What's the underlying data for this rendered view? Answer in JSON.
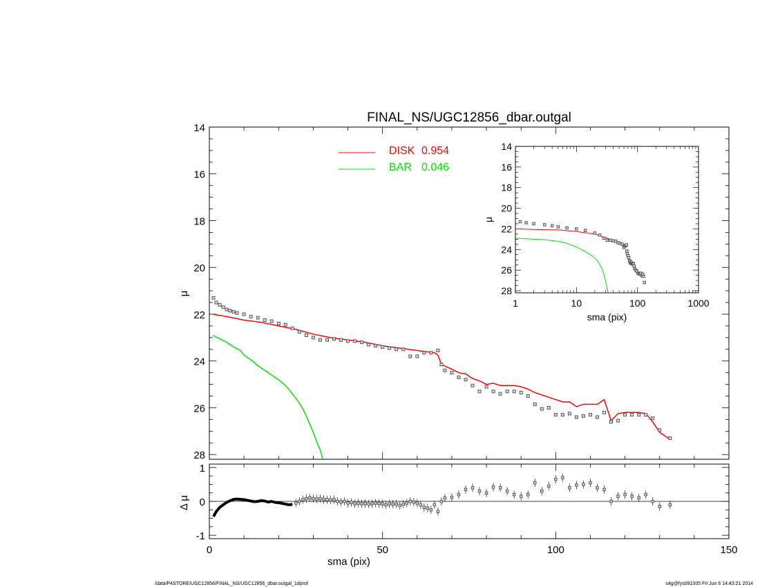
{
  "colors": {
    "disk": "#ff0000",
    "bar": "#00e000",
    "data_point": "#555555",
    "axis": "#000000",
    "background": "#ffffff"
  },
  "footer": {
    "left": "/data/P4STORE/UGC12856/FINAL_NS/UGC12856_dbar.outgal_1dprof",
    "right": "s4g@fys091005  Fri Jun  6 14:43:21 2014"
  },
  "chart_data": [
    {
      "id": "main",
      "type": "scatter",
      "title": "FINAL_NS/UGC12856_dbar.outgal",
      "xlabel": "",
      "ylabel": "μ",
      "xlim": [
        0,
        150
      ],
      "ylim": [
        28.2,
        14
      ],
      "y_inverted": true,
      "yticks": [
        "14",
        "16",
        "18",
        "20",
        "22",
        "24",
        "26",
        "28"
      ],
      "legend": {
        "placement": "top-center",
        "entries": [
          {
            "series": "disk",
            "label": "DISK",
            "value": "0.954"
          },
          {
            "series": "bar",
            "label": "BAR",
            "value": "0.046"
          }
        ]
      },
      "series": [
        {
          "key": "data",
          "kind": "points",
          "x": [
            1.2,
            2,
            3,
            4,
            5,
            6,
            7,
            8,
            10,
            12,
            14,
            16,
            18,
            20,
            22,
            24,
            26,
            28,
            30,
            32,
            34,
            36,
            38,
            40,
            42,
            44,
            46,
            48,
            50,
            52,
            54,
            56,
            58,
            60,
            62,
            64,
            66,
            67,
            68,
            70,
            72,
            74,
            76,
            78,
            80,
            82,
            84,
            86,
            88,
            90,
            92,
            94,
            96,
            98,
            100,
            102,
            104,
            106,
            108,
            110,
            112,
            114,
            116,
            118,
            120,
            122,
            124,
            126,
            128,
            130,
            133
          ],
          "y": [
            21.3,
            21.5,
            21.6,
            21.7,
            21.8,
            21.85,
            21.9,
            21.95,
            22.0,
            22.1,
            22.15,
            22.25,
            22.3,
            22.4,
            22.45,
            22.6,
            22.75,
            22.9,
            23.0,
            23.1,
            23.1,
            23.05,
            23.1,
            23.15,
            23.15,
            23.2,
            23.3,
            23.35,
            23.4,
            23.45,
            23.5,
            23.5,
            23.8,
            23.8,
            23.65,
            23.65,
            23.55,
            24.15,
            24.4,
            24.5,
            24.7,
            24.8,
            25.05,
            25.3,
            25.1,
            25.3,
            25.4,
            25.3,
            25.3,
            25.35,
            25.5,
            25.85,
            26.05,
            26.0,
            26.3,
            26.3,
            26.25,
            26.4,
            26.35,
            26.3,
            26.4,
            26.2,
            26.6,
            26.55,
            26.3,
            26.3,
            26.3,
            26.3,
            26.45,
            26.95,
            27.3
          ]
        },
        {
          "key": "disk",
          "name": "DISK",
          "kind": "line",
          "x": [
            1,
            5,
            10,
            15,
            20,
            25,
            30,
            35,
            40,
            45,
            50,
            55,
            60,
            65,
            66,
            67,
            70,
            72,
            74,
            76,
            78,
            80,
            82,
            84,
            86,
            88,
            90,
            92,
            94,
            96,
            98,
            100,
            102,
            104,
            106,
            108,
            110,
            112,
            114,
            116,
            118,
            120,
            122,
            124,
            126,
            128,
            130,
            133
          ],
          "y": [
            22.0,
            22.1,
            22.25,
            22.35,
            22.5,
            22.65,
            22.85,
            23.0,
            23.1,
            23.2,
            23.35,
            23.45,
            23.55,
            23.65,
            23.75,
            24.15,
            24.35,
            24.5,
            24.55,
            24.75,
            24.85,
            25.0,
            24.95,
            25.05,
            25.05,
            25.05,
            25.1,
            25.2,
            25.35,
            25.45,
            25.55,
            25.65,
            25.75,
            25.75,
            25.95,
            25.85,
            25.85,
            25.85,
            25.65,
            26.55,
            26.25,
            26.2,
            26.2,
            26.2,
            26.25,
            26.6,
            27.05,
            27.35
          ]
        },
        {
          "key": "bar",
          "name": "BAR",
          "kind": "line",
          "x": [
            1,
            3,
            5,
            7,
            9,
            10,
            12,
            14,
            16,
            18,
            20,
            22,
            24,
            26,
            27,
            28,
            29,
            30,
            31,
            32,
            32.8
          ],
          "y": [
            22.9,
            23.05,
            23.2,
            23.4,
            23.55,
            23.75,
            23.95,
            24.2,
            24.4,
            24.6,
            24.8,
            25.05,
            25.4,
            25.8,
            26.05,
            26.35,
            26.7,
            27.05,
            27.45,
            27.8,
            28.2
          ]
        }
      ]
    },
    {
      "id": "inset",
      "type": "line",
      "xlabel": "sma (pix)",
      "ylabel": "μ",
      "x_scale": "log",
      "xlim": [
        1,
        1000
      ],
      "ylim": [
        28.2,
        14
      ],
      "xticks": [
        "1",
        "10",
        "100",
        "1000"
      ],
      "yticks": [
        "14",
        "16",
        "18",
        "20",
        "22",
        "24",
        "26",
        "28"
      ],
      "series": [
        {
          "key": "data",
          "kind": "points",
          "x": [
            1.2,
            1.5,
            2,
            3,
            4,
            5,
            7,
            10,
            14,
            20,
            24,
            28,
            32,
            36,
            40,
            44,
            48,
            52,
            56,
            60,
            62,
            64,
            66,
            67,
            68,
            70,
            72,
            74,
            76,
            78,
            80,
            82,
            84,
            86,
            88,
            90,
            94,
            98,
            102,
            106,
            110,
            114,
            118,
            122,
            126,
            130
          ],
          "y": [
            21.3,
            21.4,
            21.5,
            21.6,
            21.7,
            21.8,
            21.9,
            22.0,
            22.15,
            22.4,
            22.6,
            22.9,
            23.1,
            23.1,
            23.15,
            23.2,
            23.35,
            23.4,
            23.5,
            23.8,
            23.65,
            23.6,
            23.55,
            24.15,
            24.4,
            24.6,
            24.8,
            25.1,
            25.3,
            25.2,
            25.35,
            25.4,
            25.35,
            25.4,
            25.6,
            25.85,
            26.0,
            26.1,
            26.3,
            26.35,
            26.4,
            26.3,
            26.55,
            26.4,
            26.6,
            27.2
          ]
        },
        {
          "key": "disk",
          "kind": "line",
          "x": [
            1,
            2,
            5,
            10,
            20,
            30,
            40,
            50,
            60,
            66
          ],
          "y": [
            22.0,
            22.05,
            22.1,
            22.25,
            22.5,
            22.85,
            23.1,
            23.35,
            23.55,
            23.75
          ]
        },
        {
          "key": "bar",
          "kind": "line",
          "x": [
            1,
            2,
            3,
            5,
            7,
            10,
            14,
            18,
            22,
            26,
            28,
            30,
            32,
            33
          ],
          "y": [
            22.9,
            23.0,
            23.05,
            23.2,
            23.4,
            23.75,
            24.2,
            24.6,
            25.05,
            25.8,
            26.35,
            27.05,
            27.8,
            28.2
          ]
        }
      ]
    },
    {
      "id": "residual",
      "type": "scatter",
      "xlabel": "sma (pix)",
      "ylabel": "Δ μ",
      "xlim": [
        0,
        150
      ],
      "ylim": [
        -1.1,
        1.1
      ],
      "xticks": [
        "0",
        "50",
        "100",
        "150"
      ],
      "yticks": [
        "1",
        "0",
        "-1"
      ],
      "series": [
        {
          "key": "resid_line",
          "kind": "line",
          "x": [
            1.2,
            2,
            3,
            4,
            5,
            6,
            7,
            8,
            9,
            10,
            11,
            12,
            13,
            14,
            15,
            16,
            17,
            18,
            19,
            20,
            21,
            22,
            23,
            24
          ],
          "y": [
            -0.45,
            -0.3,
            -0.18,
            -0.1,
            -0.03,
            0.02,
            0.06,
            0.07,
            0.06,
            0.05,
            0.03,
            0.01,
            -0.01,
            0.0,
            0.02,
            0.01,
            -0.02,
            0.0,
            -0.03,
            -0.04,
            -0.06,
            -0.08,
            -0.1,
            -0.09
          ]
        },
        {
          "key": "resid_points",
          "kind": "points",
          "x": [
            25,
            26,
            27,
            28,
            29,
            30,
            31,
            32,
            33,
            34,
            35,
            36,
            37,
            38,
            39,
            40,
            41,
            42,
            43,
            44,
            45,
            46,
            47,
            48,
            49,
            50,
            51,
            52,
            53,
            54,
            55,
            56,
            57,
            58,
            59,
            60,
            61,
            62,
            63,
            64,
            65,
            66,
            67,
            68,
            70,
            72,
            74,
            76,
            78,
            80,
            82,
            84,
            86,
            88,
            90,
            92,
            94,
            96,
            98,
            100,
            102,
            104,
            106,
            108,
            110,
            112,
            114,
            116,
            118,
            120,
            122,
            124,
            126,
            128,
            130,
            133
          ],
          "y": [
            -0.05,
            0.0,
            0.05,
            0.08,
            0.1,
            0.08,
            0.07,
            0.08,
            0.06,
            0.05,
            0.04,
            0.05,
            0.0,
            -0.02,
            0.0,
            -0.05,
            -0.03,
            -0.07,
            -0.05,
            -0.07,
            -0.06,
            -0.08,
            -0.07,
            -0.05,
            -0.06,
            -0.07,
            -0.1,
            -0.07,
            -0.08,
            -0.08,
            -0.12,
            -0.08,
            -0.05,
            0.0,
            -0.02,
            -0.05,
            -0.1,
            -0.18,
            -0.2,
            -0.25,
            -0.1,
            -0.3,
            0.0,
            0.1,
            0.12,
            0.2,
            0.35,
            0.4,
            0.3,
            0.25,
            0.42,
            0.4,
            0.3,
            0.2,
            0.15,
            0.2,
            0.55,
            0.3,
            0.45,
            0.65,
            0.7,
            0.4,
            0.48,
            0.5,
            0.55,
            0.4,
            0.35,
            0.0,
            0.15,
            0.2,
            0.15,
            0.1,
            0.2,
            0.0,
            -0.15,
            -0.1
          ]
        }
      ]
    }
  ]
}
